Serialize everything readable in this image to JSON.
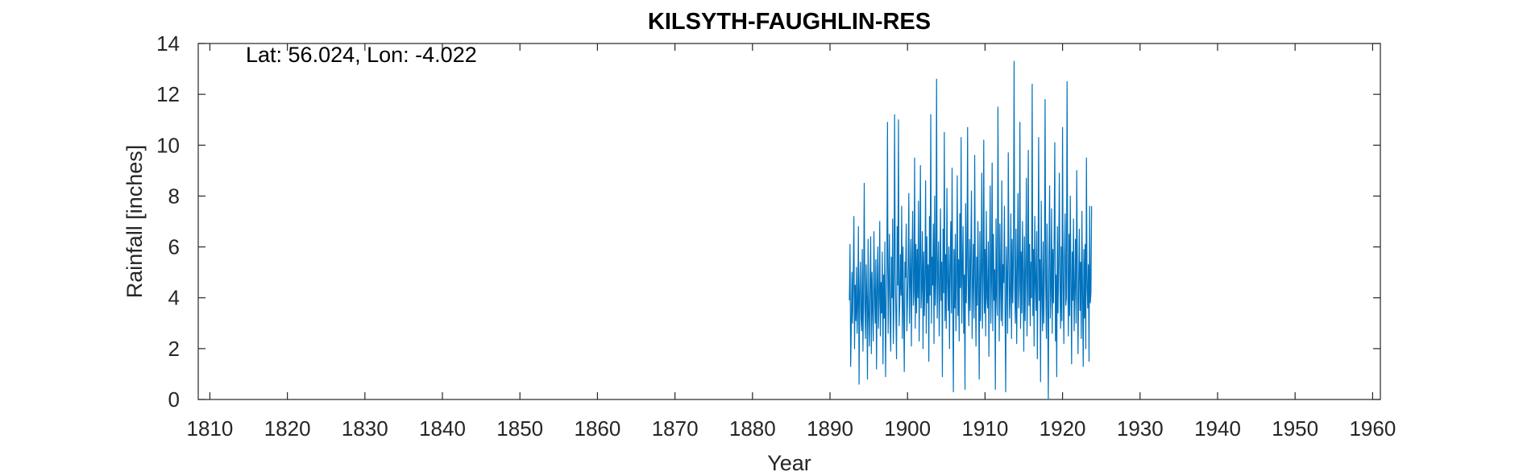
{
  "chart_data": {
    "type": "line",
    "title": "KILSYTH-FAUGHLIN-RES",
    "xlabel": "Year",
    "ylabel": "Rainfall [inches]",
    "annotation": "Lat: 56.024, Lon: -4.022",
    "xlim": [
      1808.5,
      1961
    ],
    "ylim": [
      0,
      14
    ],
    "xticks": [
      1810,
      1820,
      1830,
      1840,
      1850,
      1860,
      1870,
      1880,
      1890,
      1900,
      1910,
      1920,
      1930,
      1940,
      1950,
      1960
    ],
    "yticks": [
      0,
      2,
      4,
      6,
      8,
      10,
      12,
      14
    ],
    "grid": false,
    "line_color": "#0072BD",
    "series": [
      {
        "x_start": 1892.5,
        "x_step": 0.08333,
        "values": [
          3.9,
          6.1,
          1.3,
          2.9,
          5.0,
          3.0,
          4.8,
          7.2,
          2.0,
          4.5,
          3.1,
          5.2,
          2.6,
          3.8,
          6.8,
          0.6,
          4.2,
          5.4,
          3.2,
          2.7,
          5.9,
          1.9,
          4.1,
          8.5,
          3.6,
          2.4,
          5.3,
          4.0,
          0.8,
          6.3,
          3.3,
          2.1,
          4.7,
          6.4,
          1.8,
          5.0,
          3.5,
          2.3,
          6.6,
          4.2,
          3.0,
          5.5,
          1.2,
          4.4,
          6.0,
          2.8,
          3.9,
          7.0,
          2.5,
          4.6,
          3.4,
          5.8,
          1.4,
          4.9,
          3.2,
          6.2,
          0.9,
          3.7,
          5.1,
          10.9,
          2.6,
          4.3,
          6.5,
          3.1,
          1.9,
          5.6,
          4.0,
          7.1,
          2.2,
          3.6,
          11.2,
          5.0,
          3.3,
          1.6,
          6.8,
          4.5,
          11.0,
          2.9,
          3.8,
          5.7,
          4.1,
          7.6,
          2.4,
          6.0,
          3.5,
          1.1,
          5.4,
          4.8,
          6.9,
          2.7,
          3.9,
          5.2,
          8.1,
          3.0,
          4.6,
          6.3,
          2.1,
          5.5,
          7.4,
          3.7,
          4.2,
          9.5,
          2.8,
          6.1,
          3.4,
          5.9,
          4.0,
          7.8,
          2.3,
          5.1,
          9.2,
          3.6,
          4.4,
          6.6,
          2.0,
          5.8,
          3.3,
          4.9,
          8.6,
          2.6,
          6.4,
          3.8,
          5.3,
          1.5,
          7.2,
          4.1,
          11.2,
          3.0,
          5.6,
          4.5,
          6.9,
          2.2,
          8.0,
          3.7,
          4.8,
          12.6,
          3.2,
          5.0,
          6.2,
          2.5,
          4.3,
          7.5,
          3.9,
          5.4,
          0.9,
          6.7,
          4.2,
          10.5,
          3.1,
          5.7,
          2.8,
          8.3,
          4.6,
          3.5,
          6.0,
          2.0,
          5.2,
          7.0,
          3.4,
          9.1,
          4.0,
          0.3,
          5.9,
          3.6,
          6.5,
          2.7,
          4.7,
          8.8,
          3.3,
          5.5,
          2.3,
          7.3,
          4.4,
          10.3,
          3.0,
          5.1,
          6.8,
          2.6,
          4.9,
          0.4,
          7.7,
          3.8,
          5.3,
          10.7,
          4.1,
          2.9,
          6.3,
          3.5,
          5.8,
          8.2,
          2.4,
          4.5,
          6.1,
          3.2,
          9.6,
          4.8,
          2.1,
          5.6,
          3.7,
          7.0,
          4.3,
          0.8,
          6.6,
          3.1,
          5.0,
          8.9,
          2.8,
          4.6,
          10.2,
          3.4,
          5.9,
          2.5,
          7.4,
          4.0,
          3.6,
          6.2,
          1.7,
          5.4,
          8.4,
          3.0,
          4.7,
          9.3,
          2.7,
          6.5,
          3.9,
          5.1,
          0.4,
          7.1,
          4.2,
          3.3,
          11.5,
          5.6,
          2.3,
          6.9,
          4.4,
          3.1,
          8.6,
          2.9,
          5.3,
          4.6,
          7.6,
          3.5,
          0.3,
          6.0,
          4.8,
          2.6,
          9.7,
          5.7,
          3.2,
          4.1,
          7.3,
          2.4,
          6.3,
          3.8,
          5.5,
          13.3,
          4.3,
          3.0,
          6.7,
          2.2,
          5.0,
          8.1,
          3.6,
          4.5,
          10.9,
          2.8,
          5.8,
          3.4,
          7.0,
          4.9,
          1.9,
          6.4,
          3.1,
          5.2,
          8.7,
          2.5,
          4.4,
          9.8,
          3.7,
          6.1,
          2.9,
          5.4,
          4.0,
          12.4,
          3.3,
          5.9,
          2.1,
          7.2,
          4.6,
          3.5,
          6.6,
          1.6,
          4.8,
          10.3,
          3.9,
          5.5,
          0.7,
          7.8,
          4.2,
          2.7,
          6.2,
          3.0,
          5.1,
          11.8,
          4.5,
          2.4,
          6.9,
          3.6,
          0.0,
          5.7,
          8.4,
          3.2,
          4.1,
          7.5,
          2.6,
          5.9,
          3.8,
          6.4,
          10.1,
          2.3,
          4.9,
          0.9,
          6.8,
          3.4,
          5.3,
          8.9,
          4.4,
          2.8,
          6.0,
          3.1,
          10.7,
          4.7,
          2.2,
          5.6,
          7.3,
          3.7,
          4.0,
          12.5,
          5.2,
          2.5,
          6.5,
          3.3,
          8.0,
          4.8,
          1.4,
          5.8,
          3.9,
          7.1,
          2.7,
          4.3,
          6.3,
          3.0,
          9.0,
          5.0,
          1.8,
          4.6,
          6.7,
          3.5,
          5.4,
          2.4,
          7.4,
          4.1,
          1.3,
          5.9,
          3.2,
          6.1,
          2.0,
          9.5,
          4.5,
          3.6,
          5.3,
          1.5,
          7.6,
          3.8,
          4.2,
          7.6
        ]
      }
    ]
  }
}
